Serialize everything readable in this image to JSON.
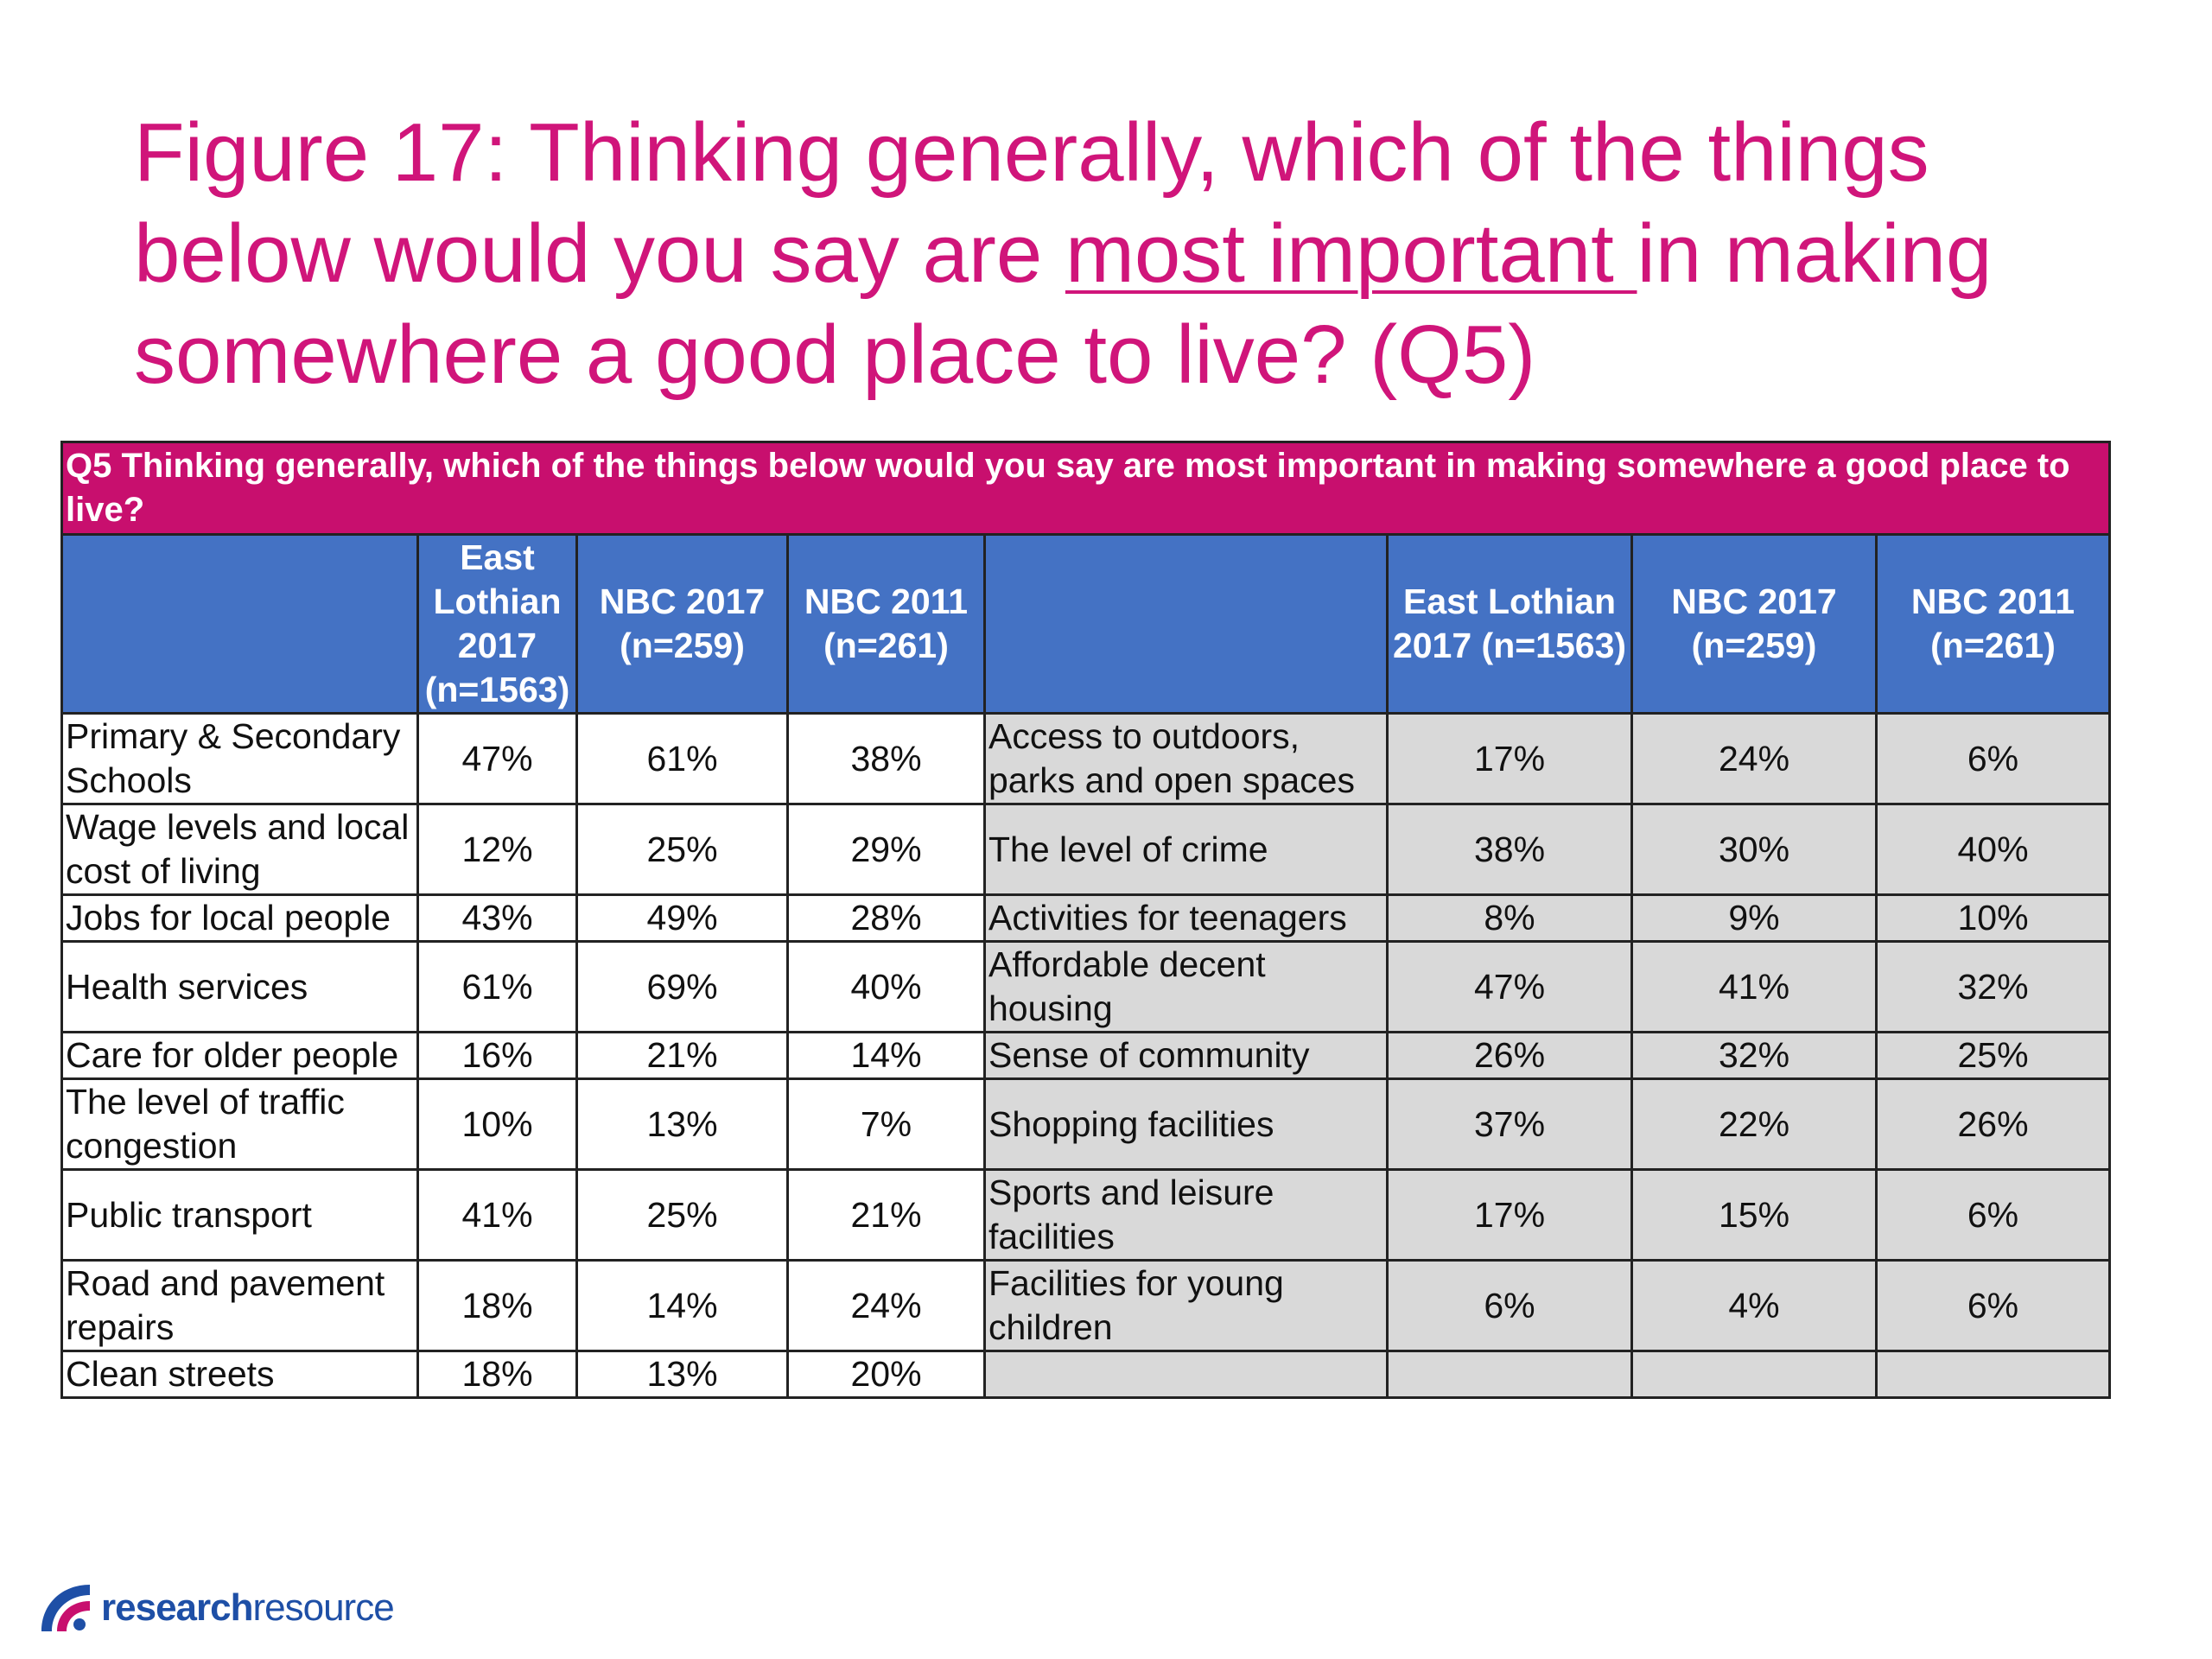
{
  "title": {
    "part1": "Figure 17: Thinking generally, which of the things below would you say are ",
    "underlined": "most important ",
    "part2": "in making somewhere a good place to live? (Q5)"
  },
  "table": {
    "question": "Q5 Thinking generally, which of the things below would you say are most important in making somewhere a good place to live?",
    "columns": [
      "East Lothian 2017 (n=1563)",
      "NBC 2017 (n=259)",
      "NBC 2011 (n=261)"
    ],
    "left_rows": [
      {
        "label": "Primary & Secondary Schools",
        "values": [
          "47%",
          "61%",
          "38%"
        ]
      },
      {
        "label": "Wage levels and local cost of living",
        "values": [
          "12%",
          "25%",
          "29%"
        ]
      },
      {
        "label": "Jobs for local people",
        "values": [
          "43%",
          "49%",
          "28%"
        ]
      },
      {
        "label": "Health services",
        "values": [
          "61%",
          "69%",
          "40%"
        ]
      },
      {
        "label": "Care for older people",
        "values": [
          "16%",
          "21%",
          "14%"
        ]
      },
      {
        "label": "The level of traffic congestion",
        "values": [
          "10%",
          "13%",
          "7%"
        ]
      },
      {
        "label": "Public transport",
        "values": [
          "41%",
          "25%",
          "21%"
        ]
      },
      {
        "label": "Road and pavement repairs",
        "values": [
          "18%",
          "14%",
          "24%"
        ]
      },
      {
        "label": "Clean streets",
        "values": [
          "18%",
          "13%",
          "20%"
        ]
      }
    ],
    "right_rows": [
      {
        "label": "Access to outdoors, parks and open spaces",
        "values": [
          "17%",
          "24%",
          "6%"
        ]
      },
      {
        "label": "The level of crime",
        "values": [
          "38%",
          "30%",
          "40%"
        ]
      },
      {
        "label": "Activities for teenagers",
        "values": [
          "8%",
          "9%",
          "10%"
        ]
      },
      {
        "label": "Affordable decent housing",
        "values": [
          "47%",
          "41%",
          "32%"
        ]
      },
      {
        "label": "Sense of community",
        "values": [
          "26%",
          "32%",
          "25%"
        ]
      },
      {
        "label": "Shopping facilities",
        "values": [
          "37%",
          "22%",
          "26%"
        ]
      },
      {
        "label": "Sports and leisure facilities",
        "values": [
          "17%",
          "15%",
          "6%"
        ]
      },
      {
        "label": "Facilities for young children",
        "values": [
          "6%",
          "4%",
          "6%"
        ]
      },
      {
        "label": "",
        "values": [
          "",
          "",
          ""
        ]
      }
    ]
  },
  "chart_data": {
    "type": "table",
    "title": "Figure 17: Thinking generally, which of the things below would you say are most important in making somewhere a good place to live? (Q5)",
    "series": [
      {
        "name": "East Lothian 2017 (n=1563)"
      },
      {
        "name": "NBC 2017 (n=259)"
      },
      {
        "name": "NBC 2011 (n=261)"
      }
    ],
    "rows": [
      {
        "category": "Primary & Secondary Schools",
        "values": [
          47,
          61,
          38
        ]
      },
      {
        "category": "Wage levels and local cost of living",
        "values": [
          12,
          25,
          29
        ]
      },
      {
        "category": "Jobs for local people",
        "values": [
          43,
          49,
          28
        ]
      },
      {
        "category": "Health services",
        "values": [
          61,
          69,
          40
        ]
      },
      {
        "category": "Care for older people",
        "values": [
          16,
          21,
          14
        ]
      },
      {
        "category": "The level of traffic congestion",
        "values": [
          10,
          13,
          7
        ]
      },
      {
        "category": "Public transport",
        "values": [
          41,
          25,
          21
        ]
      },
      {
        "category": "Road and pavement repairs",
        "values": [
          18,
          14,
          24
        ]
      },
      {
        "category": "Clean streets",
        "values": [
          18,
          13,
          20
        ]
      },
      {
        "category": "Access to outdoors, parks and open spaces",
        "values": [
          17,
          24,
          6
        ]
      },
      {
        "category": "The level of crime",
        "values": [
          38,
          30,
          40
        ]
      },
      {
        "category": "Activities for teenagers",
        "values": [
          8,
          9,
          10
        ]
      },
      {
        "category": "Affordable decent housing",
        "values": [
          47,
          41,
          32
        ]
      },
      {
        "category": "Sense of community",
        "values": [
          26,
          32,
          25
        ]
      },
      {
        "category": "Shopping facilities",
        "values": [
          37,
          22,
          26
        ]
      },
      {
        "category": "Sports and leisure facilities",
        "values": [
          17,
          15,
          6
        ]
      },
      {
        "category": "Facilities for young children",
        "values": [
          6,
          4,
          6
        ]
      }
    ],
    "colors": {
      "title": "#d0157a",
      "question_header": "#c80f6e",
      "column_header": "#4472c4",
      "right_block": "#d9d9d9"
    }
  },
  "logo": {
    "bold": "research",
    "light": "resource",
    "color": "#1e4fa6"
  }
}
